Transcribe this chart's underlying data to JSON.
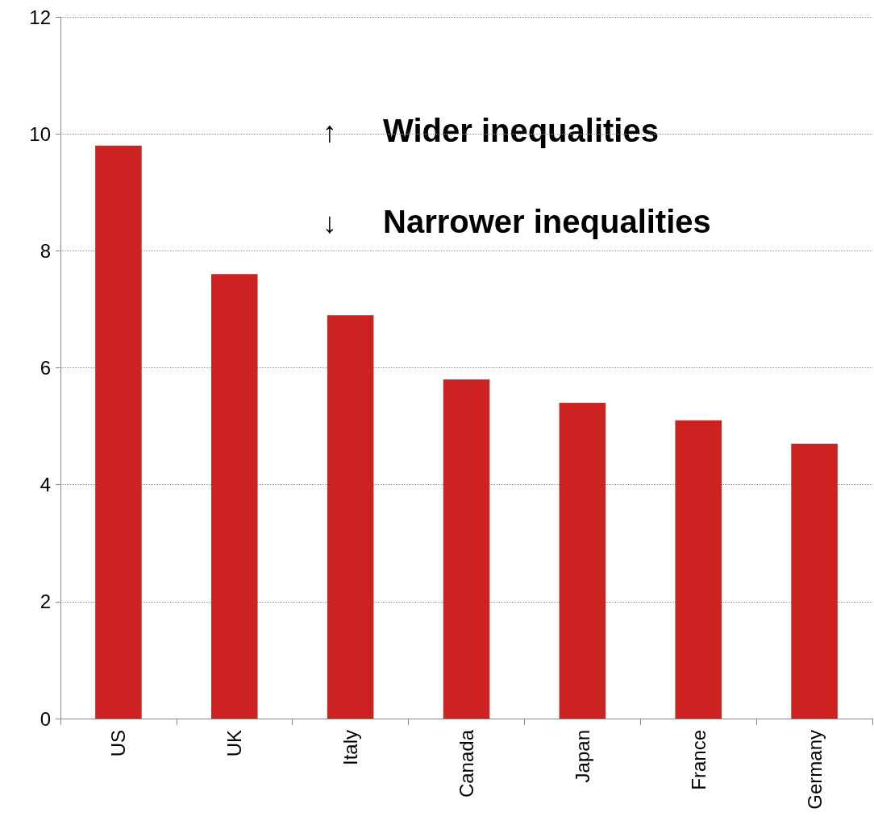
{
  "chart_data": {
    "type": "bar",
    "categories": [
      "US",
      "UK",
      "Italy",
      "Canada",
      "Japan",
      "France",
      "Germany"
    ],
    "values": [
      9.8,
      7.6,
      6.9,
      5.8,
      5.4,
      5.1,
      4.7
    ],
    "color": "#cc2222",
    "ylim": [
      0,
      12
    ],
    "yticks": [
      0,
      2,
      4,
      6,
      8,
      10,
      12
    ],
    "grid": "y",
    "annotations": [
      "↑ Wider inequalities",
      "↓ Narrower inequalities"
    ]
  }
}
